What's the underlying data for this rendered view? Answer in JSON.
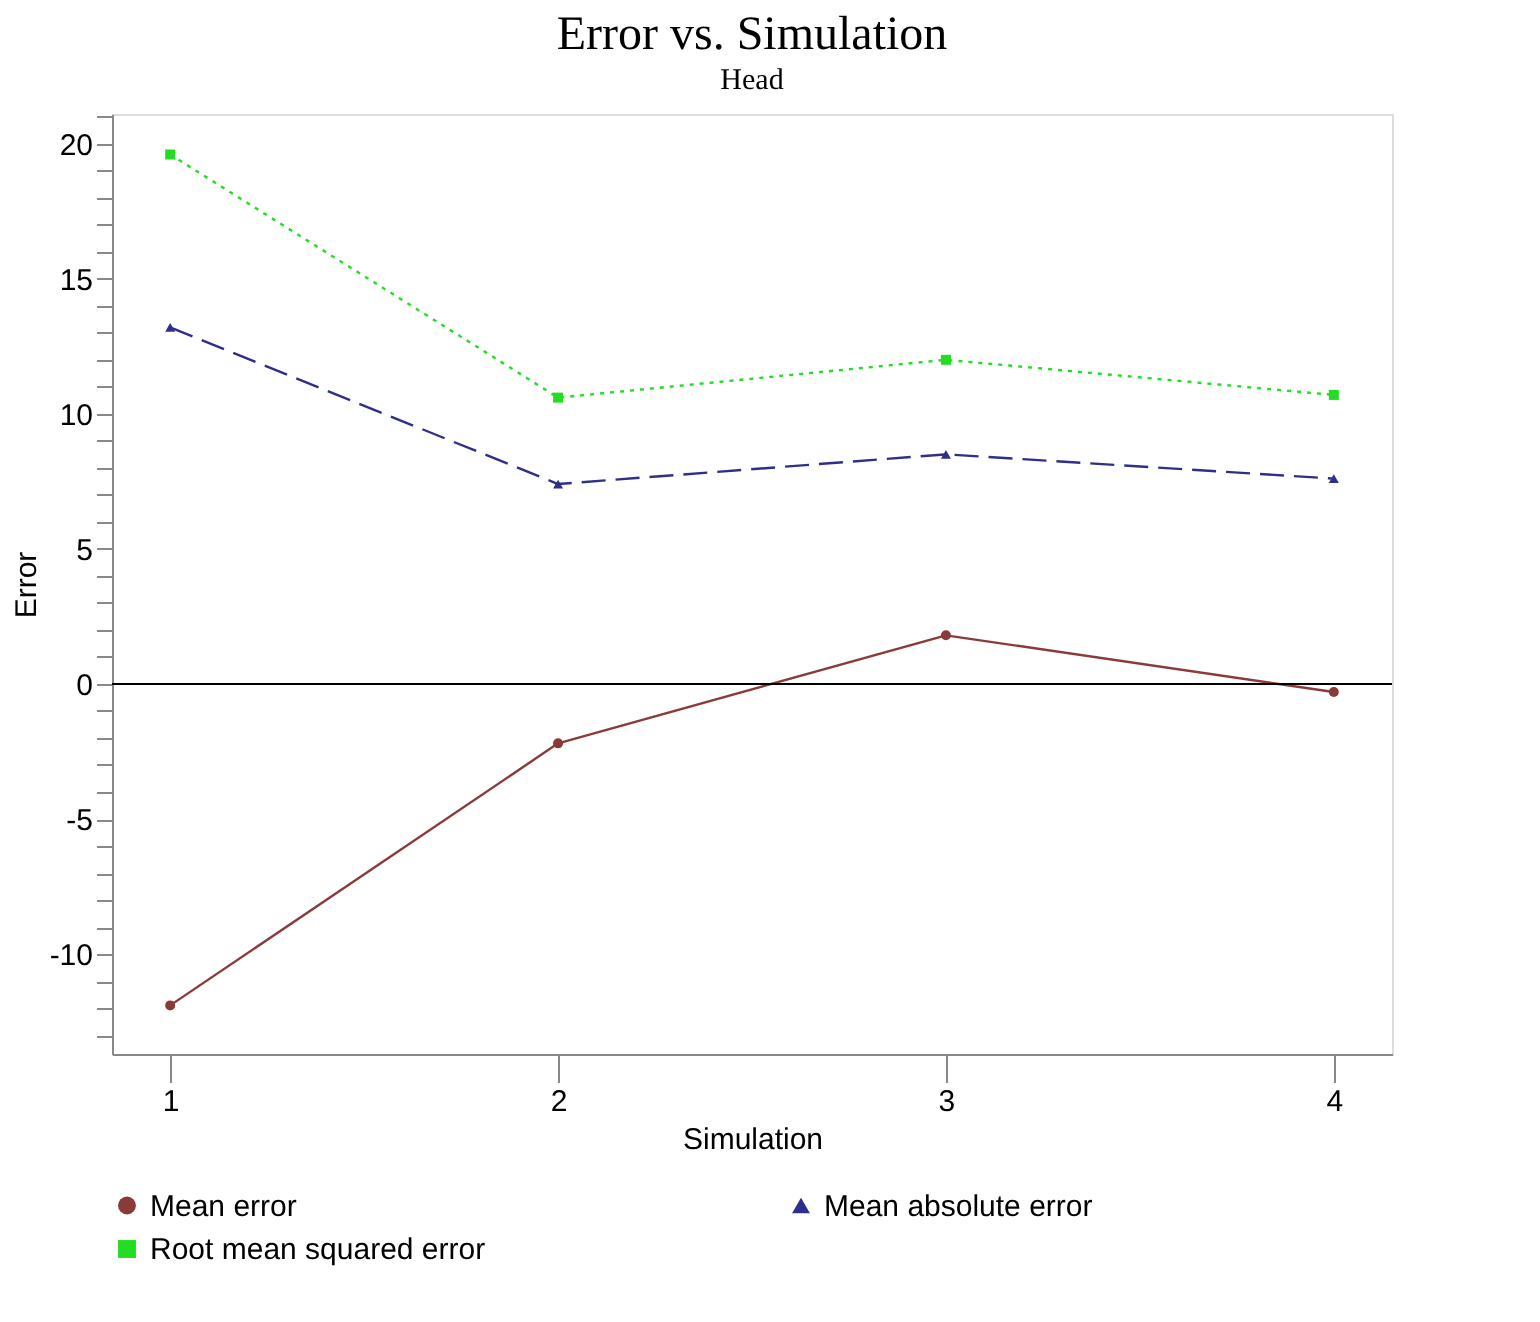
{
  "chart_data": {
    "type": "line",
    "title": "Error vs. Simulation",
    "subtitle": "Head",
    "xlabel": "Simulation",
    "ylabel": "Error",
    "x": [
      1,
      2,
      3,
      4
    ],
    "xlim": [
      0.85,
      4.15
    ],
    "xticks": [
      1,
      2,
      3,
      4
    ],
    "ylim": [
      -13.7,
      21.1
    ],
    "yticks": [
      {
        "value": -13,
        "label": null
      },
      {
        "value": -12,
        "label": null
      },
      {
        "value": -11,
        "label": null
      },
      -10,
      {
        "value": -9,
        "label": null
      },
      {
        "value": -8,
        "label": null
      },
      {
        "value": -7,
        "label": null
      },
      {
        "value": -6,
        "label": null
      },
      -5,
      {
        "value": -4,
        "label": null
      },
      {
        "value": -3,
        "label": null
      },
      {
        "value": -2,
        "label": null
      },
      {
        "value": -1,
        "label": null
      },
      0,
      {
        "value": 1,
        "label": null
      },
      {
        "value": 2,
        "label": null
      },
      {
        "value": 3,
        "label": null
      },
      {
        "value": 4,
        "label": null
      },
      5,
      {
        "value": 6,
        "label": null
      },
      {
        "value": 7,
        "label": null
      },
      {
        "value": 8,
        "label": null
      },
      {
        "value": 9,
        "label": null
      },
      10,
      {
        "value": 11,
        "label": null
      },
      {
        "value": 12,
        "label": null
      },
      {
        "value": 13,
        "label": null
      },
      {
        "value": 14,
        "label": null
      },
      15,
      {
        "value": 16,
        "label": null
      },
      {
        "value": 17,
        "label": null
      },
      {
        "value": 18,
        "label": null
      },
      {
        "value": 19,
        "label": null
      },
      20,
      {
        "value": 21,
        "label": null
      }
    ],
    "grid": false,
    "legend": "bottom",
    "ref_lines": [
      {
        "axis": "y",
        "value": 0,
        "color": "#000000",
        "line_style": "solid"
      }
    ],
    "series": [
      {
        "name": "Mean error",
        "color": "#8b3a3a",
        "values": [
          -11.9,
          -2.2,
          1.8,
          -0.3
        ],
        "marker": "circle",
        "line_style": "solid"
      },
      {
        "name": "Mean absolute error",
        "color": "#2e2e8b",
        "values": [
          13.2,
          7.4,
          8.5,
          7.6
        ],
        "marker": "triangle",
        "line_style": "dashed"
      },
      {
        "name": "Root mean squared error",
        "color": "#22dd22",
        "values": [
          19.6,
          10.6,
          12.0,
          10.7
        ],
        "marker": "square",
        "line_style": "dotted"
      }
    ]
  }
}
